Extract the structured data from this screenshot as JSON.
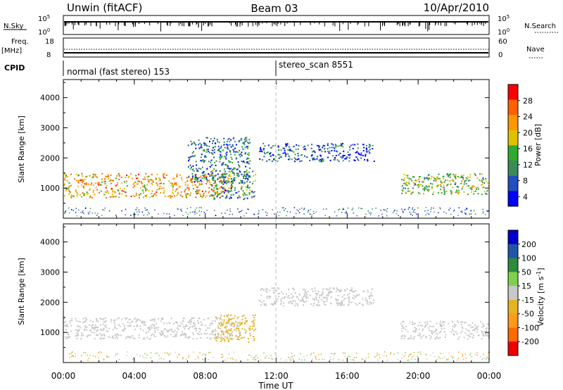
{
  "header": {
    "station": "Unwin (fitACF)",
    "beam": "Beam 03",
    "date": "10/Apr/2010"
  },
  "noise_panel": {
    "left_label": "N.Sky",
    "left_ticks": [
      "10^5",
      "10^0"
    ],
    "right_label": "N.Search",
    "right_ticks": [
      "10^5",
      "10^0"
    ]
  },
  "freq_panel": {
    "left_label_1": "Freq.",
    "left_label_2": "[MHz]",
    "left_ticks": [
      "18",
      "8"
    ],
    "right_label": "Nave",
    "right_ticks": [
      "60",
      "0"
    ]
  },
  "cpid_panel": {
    "label": "CPID",
    "mode_1": "normal (fast stereo) 153",
    "mode_2": "stereo_scan 8551"
  },
  "colors": {
    "power_scale": [
      "#0000ff",
      "#1f4fbf",
      "#3a8a5a",
      "#2faa2f",
      "#e0c000",
      "#ff9800",
      "#ff6000",
      "#ff0000"
    ],
    "velocity_scale": [
      "#0000cc",
      "#2255aa",
      "#2d8a3e",
      "#7fd04b",
      "#c8c8c8",
      "#e6b422",
      "#ff9a1a",
      "#ff6a00",
      "#ee0000"
    ]
  },
  "chart_data": [
    {
      "type": "heatmap",
      "title": "",
      "xlabel": "",
      "ylabel": "Slant Range [km]",
      "xlim": [
        0,
        24
      ],
      "ylim": [
        0,
        4600
      ],
      "x_tick_labels": [
        "00:00",
        "04:00",
        "08:00",
        "12:00",
        "16:00",
        "20:00",
        "00:00"
      ],
      "y_ticks": [
        1000,
        2000,
        3000,
        4000
      ],
      "colorbar": {
        "label": "Power [dB]",
        "ticks": [
          "28",
          "24",
          "20",
          "16",
          "12",
          "8",
          "4"
        ],
        "range": [
          0,
          30
        ]
      },
      "echo_regions": [
        {
          "x": [
            0,
            9.5
          ],
          "y": [
            700,
            1500
          ],
          "value": 20
        },
        {
          "x": [
            7.0,
            10.5
          ],
          "y": [
            1200,
            2700
          ],
          "value": 8
        },
        {
          "x": [
            8.3,
            10.8
          ],
          "y": [
            650,
            1600
          ],
          "value": 10
        },
        {
          "x": [
            11.0,
            17.5
          ],
          "y": [
            1900,
            2500
          ],
          "value": 6
        },
        {
          "x": [
            19.0,
            24.0
          ],
          "y": [
            800,
            1500
          ],
          "value": 14
        }
      ]
    },
    {
      "type": "heatmap",
      "title": "",
      "xlabel": "Time UT",
      "ylabel": "Slant Range [km]",
      "xlim": [
        0,
        24
      ],
      "ylim": [
        0,
        4600
      ],
      "x_tick_labels": [
        "00:00",
        "04:00",
        "08:00",
        "12:00",
        "16:00",
        "20:00",
        "00:00"
      ],
      "y_ticks": [
        1000,
        2000,
        3000,
        4000
      ],
      "colorbar": {
        "label": "Velocity [m s^-1]",
        "ticks": [
          "200",
          "100",
          "50",
          "15",
          "-15",
          "-50",
          "-100",
          "-200"
        ],
        "range": [
          -250,
          250
        ]
      },
      "echo_regions": [
        {
          "x": [
            0,
            10.0
          ],
          "y": [
            800,
            1500
          ],
          "value": 0
        },
        {
          "x": [
            8.5,
            10.8
          ],
          "y": [
            700,
            1600
          ],
          "value": -60
        },
        {
          "x": [
            11.0,
            17.5
          ],
          "y": [
            1900,
            2500
          ],
          "value": 0
        },
        {
          "x": [
            19.0,
            24.0
          ],
          "y": [
            800,
            1400
          ],
          "value": 0
        }
      ]
    }
  ],
  "xaxis_label": "Time UT"
}
